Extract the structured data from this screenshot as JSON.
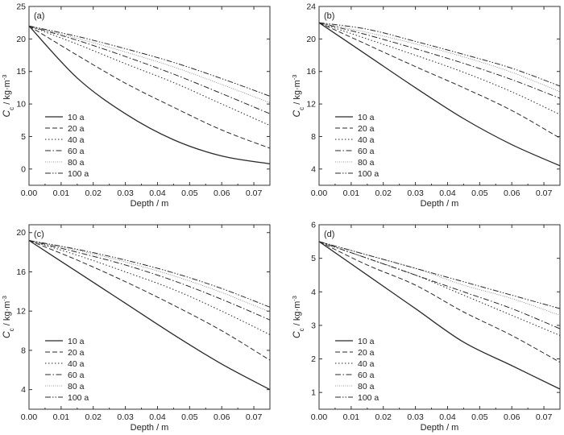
{
  "colors": {
    "axis": "#333333",
    "line": "#2a2a2a",
    "background": "#ffffff"
  },
  "chart_data": [
    {
      "type": "line",
      "panel_label": "(a)",
      "xlabel": "Depth / m",
      "ylabel": "C_c / kg·m⁻³",
      "ylabel_main": "C",
      "ylabel_sub": "c",
      "ylabel_unit": " / kg·m",
      "ylabel_sup": "-3",
      "xlim": [
        0,
        0.075
      ],
      "ylim": [
        -2.5,
        25
      ],
      "xticks": [
        0,
        0.01,
        0.02,
        0.03,
        0.04,
        0.05,
        0.06,
        0.07
      ],
      "xticklabels": [
        "0.00",
        "0.01",
        "0.02",
        "0.03",
        "0.04",
        "0.05",
        "0.06",
        "0.07"
      ],
      "yticks": [
        0,
        5,
        10,
        15,
        20,
        25
      ],
      "yticklabels": [
        "0",
        "5",
        "10",
        "15",
        "20",
        "25"
      ],
      "grid": false,
      "legend_position": "lower-left",
      "x": [
        0,
        0.015,
        0.03,
        0.045,
        0.06,
        0.075
      ],
      "series": [
        {
          "name": "10 a",
          "values": [
            22.0,
            14.0,
            8.5,
            4.5,
            2.0,
            0.8
          ]
        },
        {
          "name": "20 a",
          "values": [
            22.0,
            17.5,
            13.2,
            9.5,
            6.0,
            3.2
          ]
        },
        {
          "name": "40 a",
          "values": [
            22.0,
            19.2,
            16.2,
            13.3,
            10.0,
            6.7
          ]
        },
        {
          "name": "60 a",
          "values": [
            22.0,
            19.8,
            17.3,
            14.6,
            11.6,
            8.5
          ]
        },
        {
          "name": "80 a",
          "values": [
            22.0,
            20.1,
            18.0,
            15.7,
            13.0,
            10.2
          ]
        },
        {
          "name": "100 a",
          "values": [
            22.0,
            20.4,
            18.5,
            16.4,
            13.9,
            11.2
          ]
        }
      ]
    },
    {
      "type": "line",
      "panel_label": "(b)",
      "xlabel": "Depth / m",
      "ylabel": "C_c / kg·m⁻³",
      "ylabel_main": "C",
      "ylabel_sub": "c",
      "ylabel_unit": " / kg·m",
      "ylabel_sup": "-3",
      "xlim": [
        0,
        0.075
      ],
      "ylim": [
        2,
        24
      ],
      "xticks": [
        0,
        0.01,
        0.02,
        0.03,
        0.04,
        0.05,
        0.06,
        0.07
      ],
      "xticklabels": [
        "0.00",
        "0.01",
        "0.02",
        "0.03",
        "0.04",
        "0.05",
        "0.06",
        "0.07"
      ],
      "yticks": [
        4,
        8,
        12,
        16,
        20,
        24
      ],
      "yticklabels": [
        "4",
        "8",
        "12",
        "16",
        "20",
        "24"
      ],
      "grid": false,
      "legend_position": "lower-left",
      "x": [
        0,
        0.015,
        0.03,
        0.045,
        0.06,
        0.075
      ],
      "series": [
        {
          "name": "10 a",
          "values": [
            22.0,
            18.0,
            14.0,
            10.2,
            7.0,
            4.4
          ]
        },
        {
          "name": "20 a",
          "values": [
            22.0,
            19.3,
            16.6,
            14.0,
            11.2,
            7.8
          ]
        },
        {
          "name": "40 a",
          "values": [
            22.0,
            20.0,
            18.0,
            15.9,
            13.5,
            10.7
          ]
        },
        {
          "name": "60 a",
          "values": [
            22.0,
            20.5,
            18.8,
            17.0,
            15.0,
            12.7
          ]
        },
        {
          "name": "80 a",
          "values": [
            22.0,
            20.8,
            19.4,
            17.8,
            15.9,
            13.5
          ]
        },
        {
          "name": "100 a",
          "values": [
            22.0,
            21.2,
            19.7,
            18.1,
            16.4,
            14.2
          ]
        }
      ]
    },
    {
      "type": "line",
      "panel_label": "(c)",
      "xlabel": "Depth / m",
      "ylabel": "C_c / kg·m⁻³",
      "ylabel_main": "C",
      "ylabel_sub": "c",
      "ylabel_unit": " / kg·m",
      "ylabel_sup": "-3",
      "xlim": [
        0,
        0.075
      ],
      "ylim": [
        2,
        20.8
      ],
      "xticks": [
        0,
        0.01,
        0.02,
        0.03,
        0.04,
        0.05,
        0.06,
        0.07
      ],
      "xticklabels": [
        "0.00",
        "0.01",
        "0.02",
        "0.03",
        "0.04",
        "0.05",
        "0.06",
        "0.07"
      ],
      "yticks": [
        4,
        8,
        12,
        16,
        20
      ],
      "yticklabels": [
        "4",
        "8",
        "12",
        "16",
        "20"
      ],
      "grid": false,
      "legend_position": "lower-left",
      "x": [
        0,
        0.015,
        0.03,
        0.045,
        0.06,
        0.075
      ],
      "series": [
        {
          "name": "10 a",
          "values": [
            19.2,
            16.0,
            12.8,
            9.6,
            6.6,
            4.0
          ]
        },
        {
          "name": "20 a",
          "values": [
            19.2,
            17.2,
            15.0,
            12.6,
            10.0,
            7.0
          ]
        },
        {
          "name": "40 a",
          "values": [
            19.2,
            17.7,
            16.0,
            14.2,
            12.0,
            9.6
          ]
        },
        {
          "name": "60 a",
          "values": [
            19.2,
            18.0,
            16.7,
            15.1,
            13.2,
            11.1
          ]
        },
        {
          "name": "80 a",
          "values": [
            19.2,
            18.2,
            17.0,
            15.6,
            13.9,
            11.9
          ]
        },
        {
          "name": "100 a",
          "values": [
            19.2,
            18.3,
            17.2,
            15.9,
            14.3,
            12.4
          ]
        }
      ]
    },
    {
      "type": "line",
      "panel_label": "(d)",
      "xlabel": "Depth / m",
      "ylabel": "C_c / kg·m⁻³",
      "ylabel_main": "C",
      "ylabel_sub": "c",
      "ylabel_unit": " / kg·m",
      "ylabel_sup": "-3",
      "xlim": [
        0,
        0.075
      ],
      "ylim": [
        0.5,
        6
      ],
      "xticks": [
        0,
        0.01,
        0.02,
        0.03,
        0.04,
        0.05,
        0.06,
        0.07
      ],
      "xticklabels": [
        "0.00",
        "0.01",
        "0.02",
        "0.03",
        "0.04",
        "0.05",
        "0.06",
        "0.07"
      ],
      "yticks": [
        1,
        2,
        3,
        4,
        5,
        6
      ],
      "yticklabels": [
        "1",
        "2",
        "3",
        "4",
        "5",
        "6"
      ],
      "grid": false,
      "legend_position": "lower-left",
      "x": [
        0,
        0.015,
        0.03,
        0.045,
        0.06,
        0.075
      ],
      "series": [
        {
          "name": "10 a",
          "values": [
            5.5,
            4.5,
            3.5,
            2.5,
            1.8,
            1.1
          ]
        },
        {
          "name": "20 a",
          "values": [
            5.5,
            4.8,
            4.2,
            3.4,
            2.7,
            1.9
          ]
        },
        {
          "name": "40 a",
          "values": [
            5.5,
            5.0,
            4.5,
            3.9,
            3.3,
            2.7
          ]
        },
        {
          "name": "60 a",
          "values": [
            5.5,
            5.0,
            4.5,
            4.0,
            3.5,
            2.9
          ]
        },
        {
          "name": "80 a",
          "values": [
            5.5,
            5.1,
            4.7,
            4.2,
            3.8,
            3.3
          ]
        },
        {
          "name": "100 a",
          "values": [
            5.5,
            5.1,
            4.7,
            4.3,
            3.9,
            3.5
          ]
        }
      ]
    }
  ]
}
